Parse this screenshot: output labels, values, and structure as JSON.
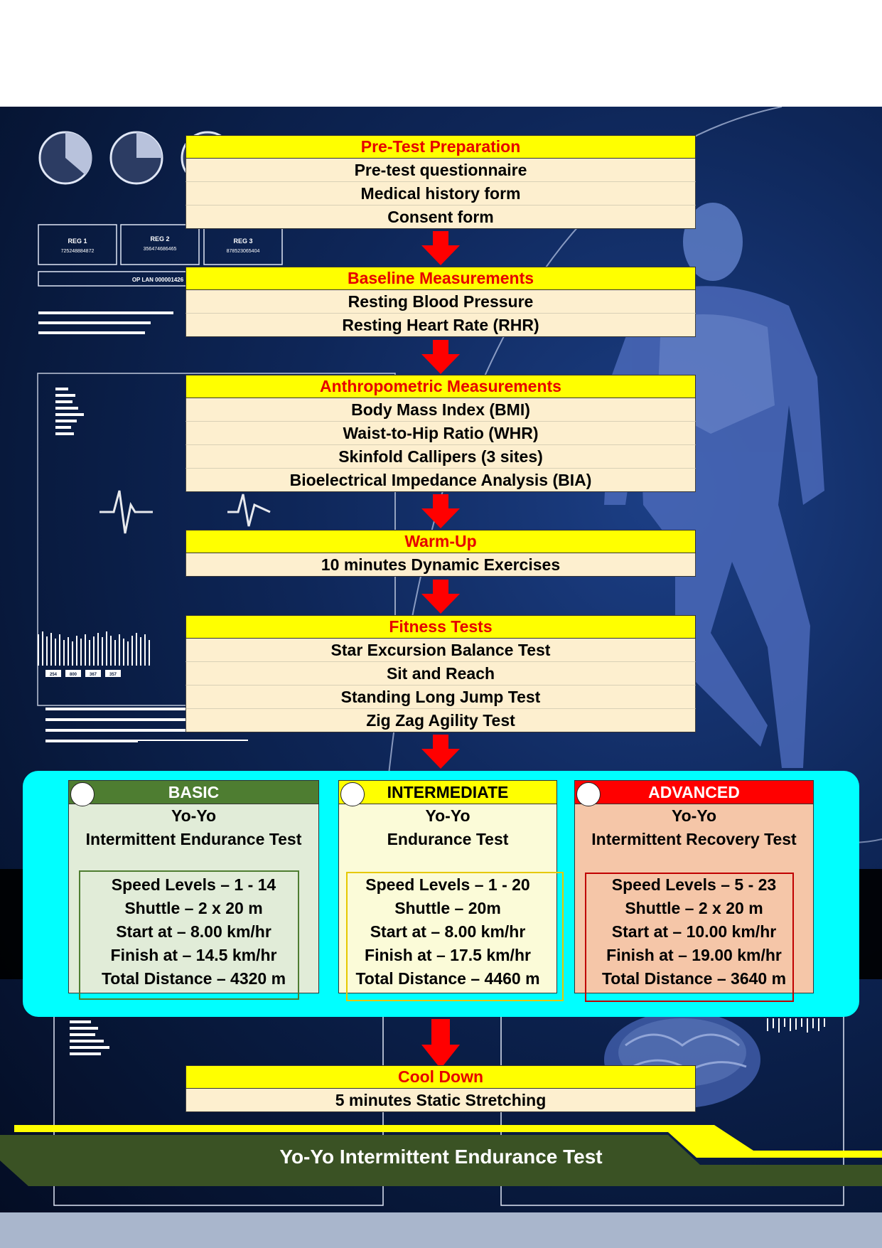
{
  "stages": [
    {
      "title": "Pre-Test Preparation",
      "items": [
        "Pre-test questionnaire",
        "Medical history form",
        "Consent form"
      ]
    },
    {
      "title": "Baseline Measurements",
      "items": [
        "Resting Blood Pressure",
        "Resting Heart Rate (RHR)"
      ]
    },
    {
      "title": "Anthropometric Measurements",
      "items": [
        "Body Mass Index (BMI)",
        "Waist-to-Hip Ratio (WHR)",
        "Skinfold Callipers (3 sites)",
        "Bioelectrical Impedance Analysis (BIA)"
      ]
    },
    {
      "title": "Warm-Up",
      "items": [
        "10 minutes Dynamic Exercises"
      ]
    },
    {
      "title": "Fitness Tests",
      "items": [
        "Star Excursion Balance Test",
        "Sit and Reach",
        "Standing Long Jump Test",
        "Zig Zag Agility Test"
      ]
    }
  ],
  "levels": [
    {
      "label": "BASIC",
      "header_color": "#4e7d31",
      "header_text_color": "#ffffff",
      "body_color": "#e1ecd8",
      "frame_color": "#4e7d31",
      "test_line1": "Yo-Yo",
      "test_line2": "Intermittent Endurance Test",
      "specs": [
        "Speed Levels – 1 - 14",
        "Shuttle – 2 x 20 m",
        "Start at – 8.00 km/hr",
        "Finish at – 14.5 km/hr",
        "Total Distance – 4320 m"
      ]
    },
    {
      "label": "INTERMEDIATE",
      "header_color": "#ffff00",
      "header_text_color": "#000000",
      "body_color": "#fbfbd8",
      "frame_color": "#e6c800",
      "test_line1": "Yo-Yo",
      "test_line2": "Endurance Test",
      "specs": [
        "Speed Levels – 1 - 20",
        "Shuttle – 20m",
        "Start at – 8.00 km/hr",
        "Finish at – 17.5 km/hr",
        "Total Distance – 4460 m"
      ]
    },
    {
      "label": "ADVANCED",
      "header_color": "#ff0000",
      "header_text_color": "#ffffff",
      "body_color": "#f5c6a8",
      "frame_color": "#c00000",
      "test_line1": "Yo-Yo",
      "test_line2": "Intermittent Recovery Test",
      "specs": [
        "Speed Levels – 5 - 23",
        "Shuttle – 2 x 20 m",
        "Start at – 10.00 km/hr",
        "Finish at – 19.00 km/hr",
        "Total Distance – 3640 m"
      ]
    }
  ],
  "cooldown": {
    "title": "Cool Down",
    "items": [
      "5 minutes Static Stretching"
    ]
  },
  "footer": {
    "title": "Yo-Yo Intermittent Endurance Test"
  },
  "background_screens": {
    "reg_boxes": [
      {
        "name": "REG 1",
        "value": "725248884872"
      },
      {
        "name": "REG 2",
        "value": "356474686465"
      },
      {
        "name": "REG 3",
        "value": "878523065404"
      }
    ],
    "op_label": "OP LAN 000001426",
    "small_tags": [
      "254",
      "800",
      "367",
      "357"
    ]
  },
  "colors": {
    "stage_header": "#ffff00",
    "stage_title": "#e60000",
    "stage_row": "#fdefcf",
    "arrow": "#ff0000",
    "panel": "#00ffff",
    "footer_band": "#3a5224",
    "footer_accent": "#ffff00"
  }
}
